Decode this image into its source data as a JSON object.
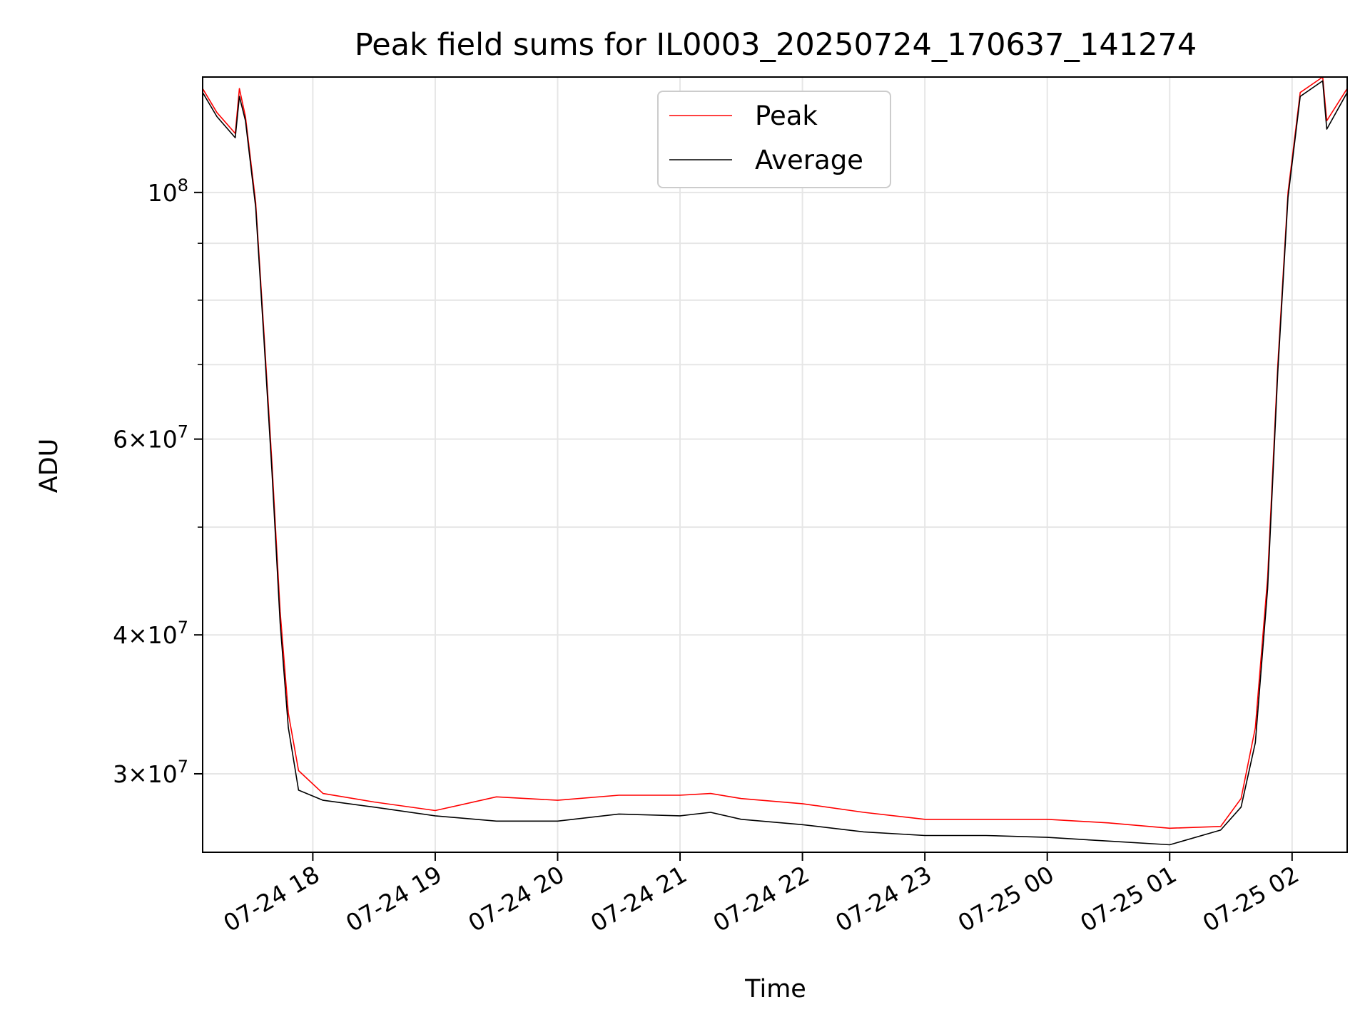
{
  "chart_data": {
    "type": "line",
    "title": "Peak field sums for IL0003_20250724_170637_141274",
    "xlabel": "Time",
    "ylabel": "ADU",
    "yscale": "log",
    "ylim": [
      25500000,
      127000000
    ],
    "xlim": [
      "2025-07-24 17:06",
      "2025-07-25 02:27"
    ],
    "grid": true,
    "legend": {
      "placement": "upper-center",
      "entries": [
        "Peak",
        "Average"
      ]
    },
    "x_ticks": [
      {
        "t": "2025-07-24 18:00",
        "label": "07-24 18"
      },
      {
        "t": "2025-07-24 19:00",
        "label": "07-24 19"
      },
      {
        "t": "2025-07-24 20:00",
        "label": "07-24 20"
      },
      {
        "t": "2025-07-24 21:00",
        "label": "07-24 21"
      },
      {
        "t": "2025-07-24 22:00",
        "label": "07-24 22"
      },
      {
        "t": "2025-07-24 23:00",
        "label": "07-24 23"
      },
      {
        "t": "2025-07-25 00:00",
        "label": "07-25 00"
      },
      {
        "t": "2025-07-25 01:00",
        "label": "07-25 01"
      },
      {
        "t": "2025-07-25 02:00",
        "label": "07-25 02"
      }
    ],
    "y_ticks": [
      {
        "value": 30000000,
        "mantissa": "3",
        "exp": "7"
      },
      {
        "value": 40000000,
        "mantissa": "4",
        "exp": "7"
      },
      {
        "value": 60000000,
        "mantissa": "6",
        "exp": "7"
      },
      {
        "value": 100000000,
        "mantissa": "",
        "exp": "8"
      }
    ],
    "y_minor_ticks": [
      50000000,
      70000000,
      80000000,
      90000000
    ],
    "series": [
      {
        "name": "Peak",
        "color": "#ff0000",
        "points": [
          [
            "2025-07-24 17:06",
            124000000
          ],
          [
            "2025-07-24 17:13",
            118000000
          ],
          [
            "2025-07-24 17:22",
            113000000
          ],
          [
            "2025-07-24 17:24",
            124000000
          ],
          [
            "2025-07-24 17:27",
            117000000
          ],
          [
            "2025-07-24 17:32",
            98000000
          ],
          [
            "2025-07-24 17:36",
            75000000
          ],
          [
            "2025-07-24 17:40",
            57000000
          ],
          [
            "2025-07-24 17:44",
            42000000
          ],
          [
            "2025-07-24 17:48",
            34000000
          ],
          [
            "2025-07-24 17:53",
            30200000
          ],
          [
            "2025-07-24 18:05",
            28800000
          ],
          [
            "2025-07-24 18:30",
            28300000
          ],
          [
            "2025-07-24 19:00",
            27800000
          ],
          [
            "2025-07-24 19:30",
            28600000
          ],
          [
            "2025-07-24 20:00",
            28400000
          ],
          [
            "2025-07-24 20:30",
            28700000
          ],
          [
            "2025-07-24 21:00",
            28700000
          ],
          [
            "2025-07-24 21:15",
            28800000
          ],
          [
            "2025-07-24 21:30",
            28500000
          ],
          [
            "2025-07-24 22:00",
            28200000
          ],
          [
            "2025-07-24 22:30",
            27700000
          ],
          [
            "2025-07-24 23:00",
            27300000
          ],
          [
            "2025-07-24 23:30",
            27300000
          ],
          [
            "2025-07-25 00:00",
            27300000
          ],
          [
            "2025-07-25 00:30",
            27100000
          ],
          [
            "2025-07-25 01:00",
            26800000
          ],
          [
            "2025-07-25 01:25",
            26900000
          ],
          [
            "2025-07-25 01:35",
            28500000
          ],
          [
            "2025-07-25 01:42",
            33000000
          ],
          [
            "2025-07-25 01:48",
            45000000
          ],
          [
            "2025-07-25 01:53",
            70000000
          ],
          [
            "2025-07-25 01:58",
            100000000
          ],
          [
            "2025-07-25 02:04",
            123000000
          ],
          [
            "2025-07-25 02:15",
            127000000
          ],
          [
            "2025-07-25 02:17",
            116000000
          ],
          [
            "2025-07-25 02:27",
            124000000
          ]
        ]
      },
      {
        "name": "Average",
        "color": "#000000",
        "points": [
          [
            "2025-07-24 17:06",
            123000000
          ],
          [
            "2025-07-24 17:13",
            117000000
          ],
          [
            "2025-07-24 17:22",
            112000000
          ],
          [
            "2025-07-24 17:24",
            122000000
          ],
          [
            "2025-07-24 17:27",
            116000000
          ],
          [
            "2025-07-24 17:32",
            97000000
          ],
          [
            "2025-07-24 17:36",
            74000000
          ],
          [
            "2025-07-24 17:40",
            56000000
          ],
          [
            "2025-07-24 17:44",
            41000000
          ],
          [
            "2025-07-24 17:48",
            33000000
          ],
          [
            "2025-07-24 17:53",
            29000000
          ],
          [
            "2025-07-24 18:05",
            28400000
          ],
          [
            "2025-07-24 18:30",
            28000000
          ],
          [
            "2025-07-24 19:00",
            27500000
          ],
          [
            "2025-07-24 19:30",
            27200000
          ],
          [
            "2025-07-24 20:00",
            27200000
          ],
          [
            "2025-07-24 20:30",
            27600000
          ],
          [
            "2025-07-24 21:00",
            27500000
          ],
          [
            "2025-07-24 21:15",
            27700000
          ],
          [
            "2025-07-24 21:30",
            27300000
          ],
          [
            "2025-07-24 22:00",
            27000000
          ],
          [
            "2025-07-24 22:30",
            26600000
          ],
          [
            "2025-07-24 23:00",
            26400000
          ],
          [
            "2025-07-24 23:30",
            26400000
          ],
          [
            "2025-07-25 00:00",
            26300000
          ],
          [
            "2025-07-25 00:30",
            26100000
          ],
          [
            "2025-07-25 01:00",
            25900000
          ],
          [
            "2025-07-25 01:25",
            26700000
          ],
          [
            "2025-07-25 01:35",
            28000000
          ],
          [
            "2025-07-25 01:42",
            32000000
          ],
          [
            "2025-07-25 01:48",
            44000000
          ],
          [
            "2025-07-25 01:53",
            69000000
          ],
          [
            "2025-07-25 01:58",
            99000000
          ],
          [
            "2025-07-25 02:04",
            122000000
          ],
          [
            "2025-07-25 02:15",
            126000000
          ],
          [
            "2025-07-25 02:17",
            114000000
          ],
          [
            "2025-07-25 02:27",
            123000000
          ]
        ]
      }
    ]
  }
}
